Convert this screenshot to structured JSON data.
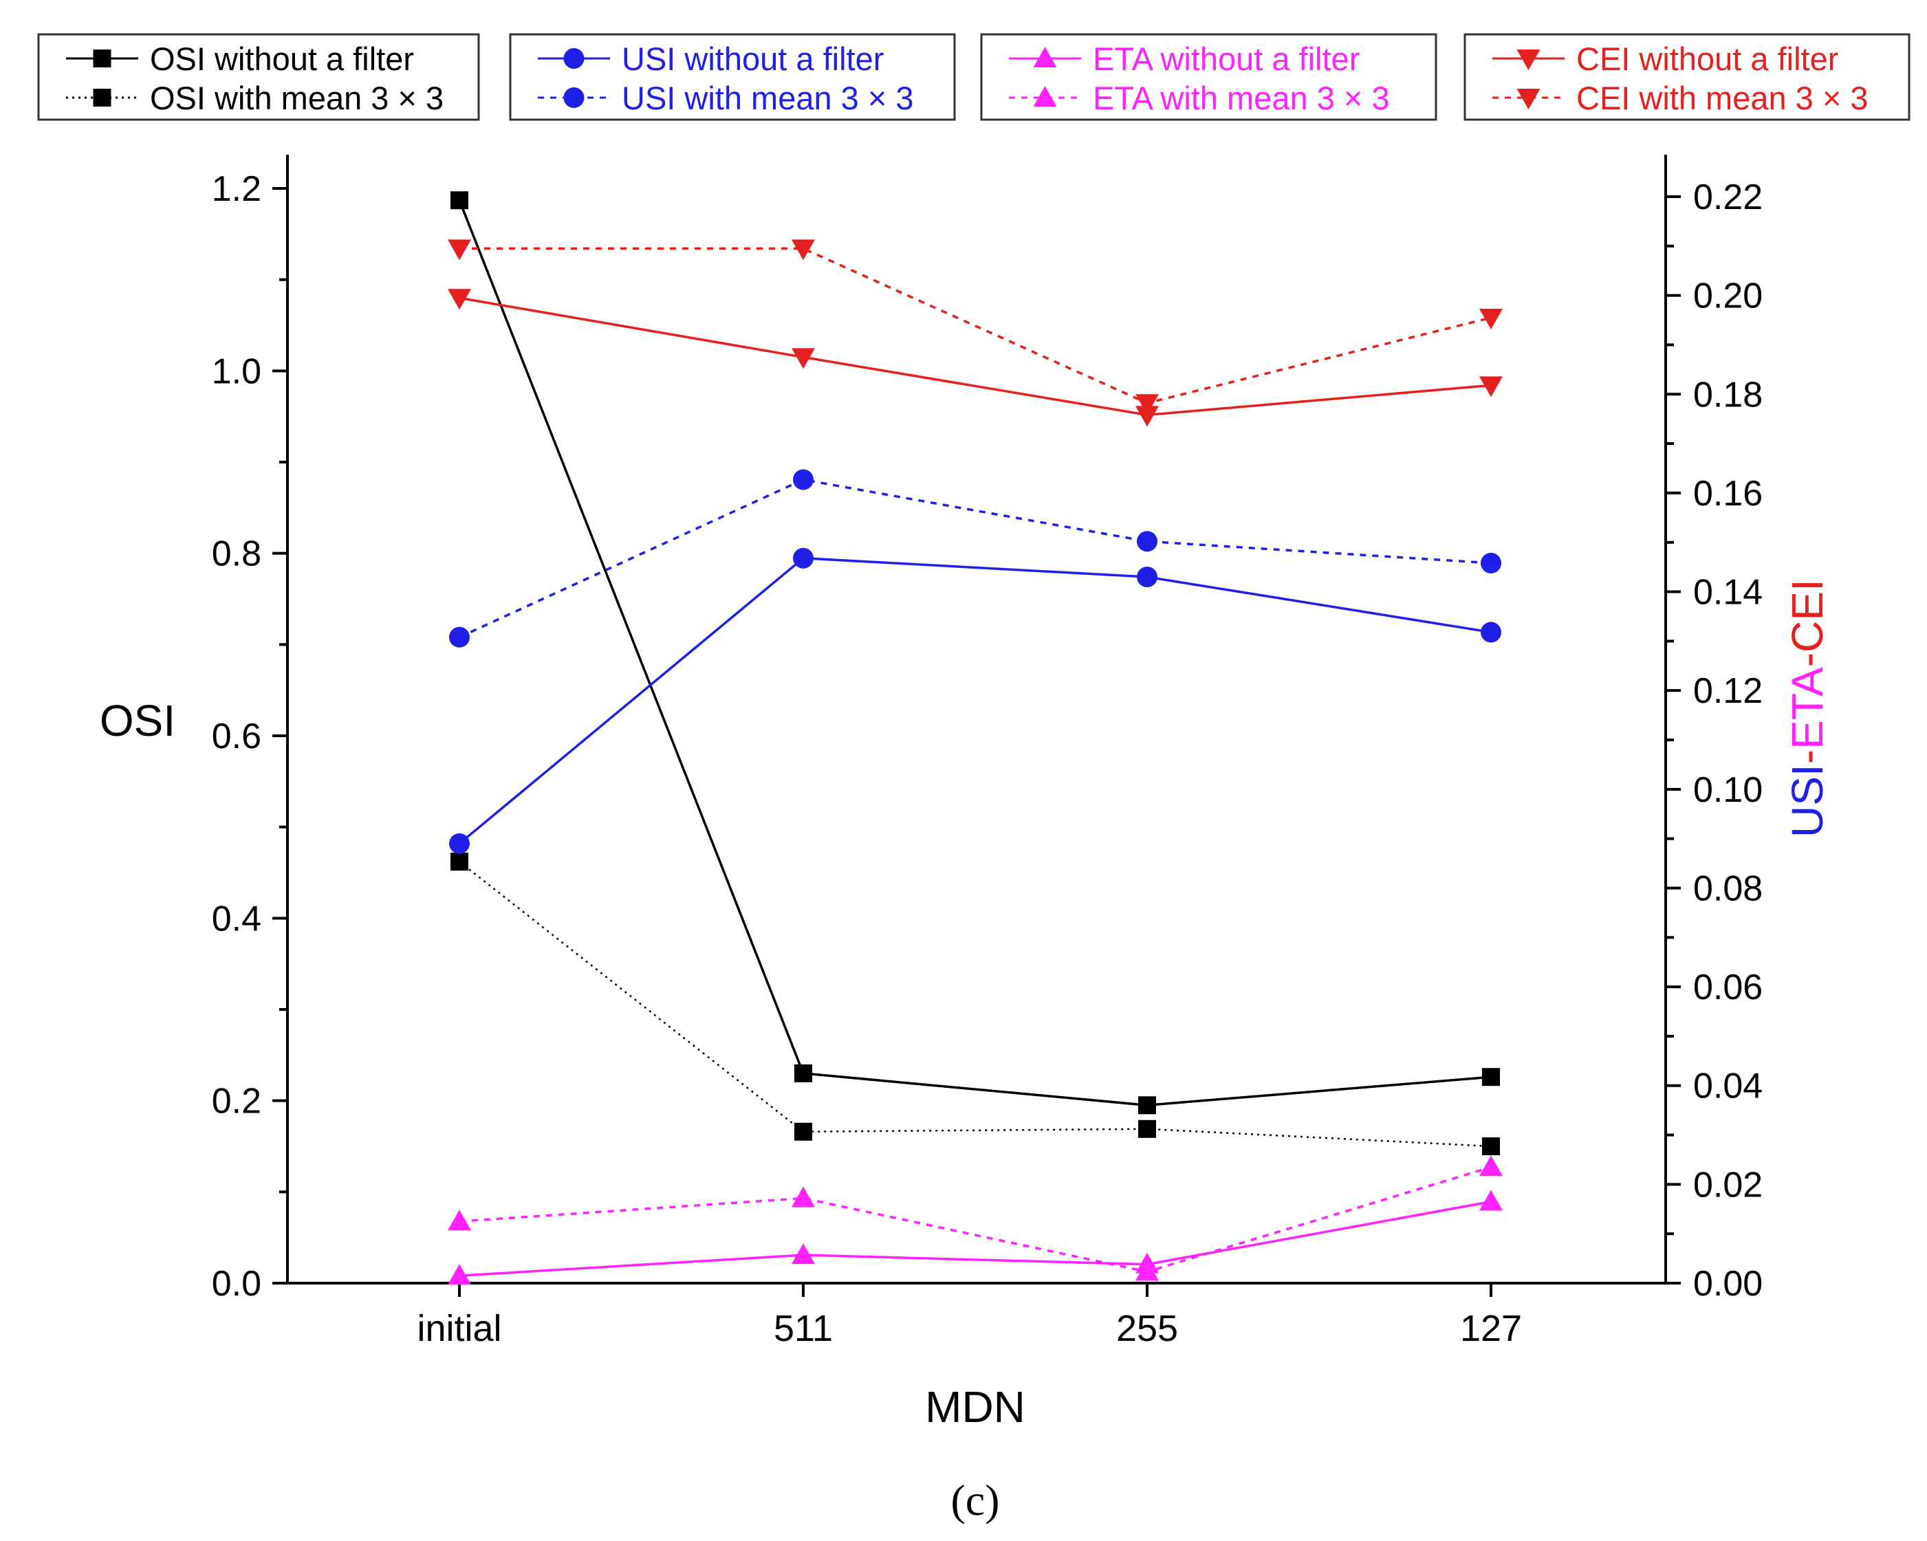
{
  "caption": "(c)",
  "chart_data": {
    "type": "line",
    "xlabel": "MDN",
    "categories": [
      "initial",
      "511",
      "255",
      "127"
    ],
    "left_axis": {
      "label": "OSI",
      "ylim": [
        0,
        1.2
      ],
      "ticks": [
        "0.0",
        "0.2",
        "0.4",
        "0.6",
        "0.8",
        "1.0",
        "1.2"
      ],
      "tick_values": [
        0,
        0.2,
        0.4,
        0.6,
        0.8,
        1.0,
        1.2
      ]
    },
    "right_axis": {
      "label_parts": [
        {
          "text": "USI",
          "color": "#1f1fe6"
        },
        {
          "text": "-",
          "color": "#e61f1f"
        },
        {
          "text": "ETA",
          "color": "#ff22ff"
        },
        {
          "text": "-",
          "color": "#e61f1f"
        },
        {
          "text": "CEI",
          "color": "#e61f1f"
        }
      ],
      "ylim": [
        0,
        0.22
      ],
      "ticks": [
        "0.00",
        "0.02",
        "0.04",
        "0.06",
        "0.08",
        "0.10",
        "0.12",
        "0.14",
        "0.16",
        "0.18",
        "0.20",
        "0.22"
      ],
      "tick_values": [
        0,
        0.02,
        0.04,
        0.06,
        0.08,
        0.1,
        0.12,
        0.14,
        0.16,
        0.18,
        0.2,
        0.22
      ]
    },
    "series": [
      {
        "name": "OSI without a filter",
        "axis": "left",
        "values": [
          1.187,
          0.23,
          0.195,
          0.226
        ],
        "color": "#000000",
        "dash": "solid",
        "marker": "square"
      },
      {
        "name": "OSI with mean 3 × 3",
        "axis": "left",
        "values": [
          0.462,
          0.166,
          0.169,
          0.15
        ],
        "color": "#000000",
        "dash": "dotted",
        "marker": "square"
      },
      {
        "name": "USI without a filter",
        "axis": "right",
        "values": [
          0.089,
          0.1468,
          0.143,
          0.1318
        ],
        "color": "#1f1fe6",
        "dash": "dotted-blue",
        "solidLine": true,
        "marker": "circle"
      },
      {
        "name": "USI with mean 3 × 3",
        "axis": "right",
        "values": [
          0.1308,
          0.1627,
          0.1502,
          0.1458
        ],
        "color": "#1f1fe6",
        "dash": "dotted",
        "marker": "circle"
      },
      {
        "name": "ETA without a filter",
        "axis": "right",
        "values": [
          0.0015,
          0.0057,
          0.0038,
          0.0165
        ],
        "color": "#ff22ff",
        "dash": "solid",
        "marker": "up-triangle"
      },
      {
        "name": "ETA with mean 3 × 3",
        "axis": "right",
        "values": [
          0.0125,
          0.0172,
          0.0023,
          0.0235
        ],
        "color": "#ff22ff",
        "dash": "dotted",
        "marker": "up-triangle"
      },
      {
        "name": "CEI without a filter",
        "axis": "right",
        "values": [
          0.1995,
          0.1875,
          0.1758,
          0.1818
        ],
        "color": "#e61f1f",
        "dash": "solid",
        "marker": "down-triangle"
      },
      {
        "name": "CEI with mean 3 × 3",
        "axis": "right",
        "values": [
          0.2095,
          0.2095,
          0.1782,
          0.1955
        ],
        "color": "#e61f1f",
        "dash": "dotted",
        "marker": "down-triangle"
      }
    ],
    "legend": {
      "placement": "top",
      "groups": [
        [
          "OSI without a filter",
          "OSI with mean 3 × 3"
        ],
        [
          "USI without a filter",
          "USI with mean 3 × 3"
        ],
        [
          "ETA without a filter",
          "ETA with mean 3 × 3"
        ],
        [
          "CEI without a filter",
          "CEI with mean 3 × 3"
        ]
      ]
    },
    "grid": false
  }
}
